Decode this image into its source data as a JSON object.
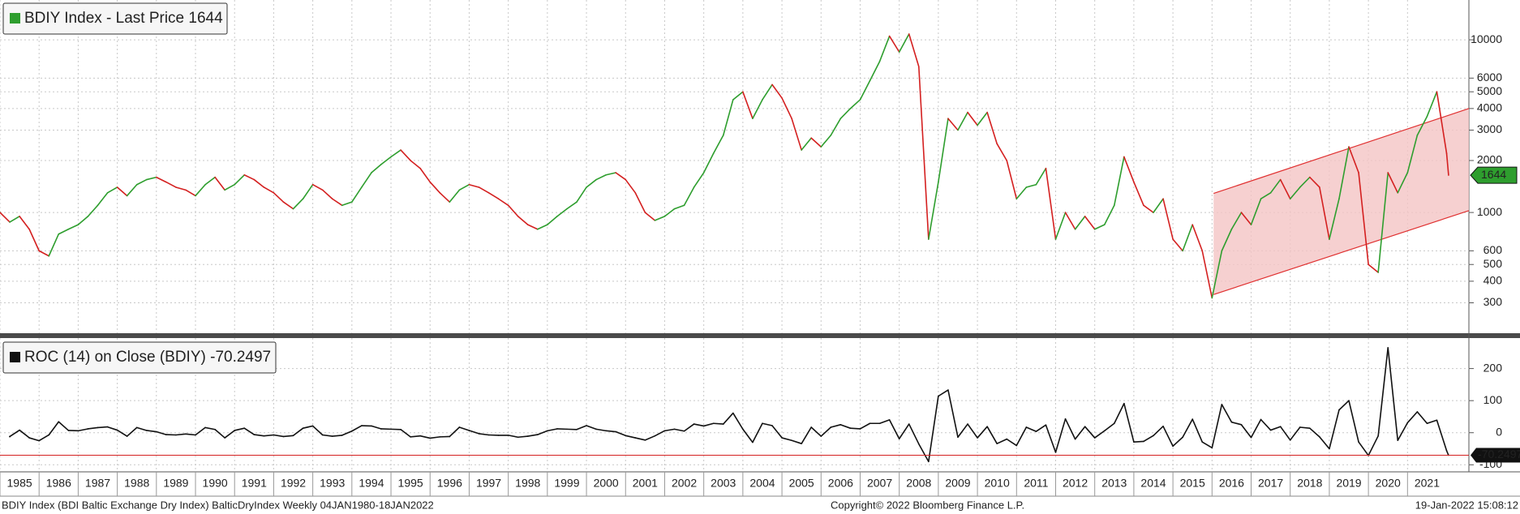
{
  "chart_data": [
    {
      "type": "line",
      "log": true,
      "grid": true,
      "up_color": "#2e9e2e",
      "down_color": "#d42020",
      "xlim": [
        1985,
        2022.57
      ],
      "ylim": [
        200,
        17000
      ],
      "yticks": [
        300,
        400,
        500,
        600,
        1000,
        2000,
        3000,
        4000,
        5000,
        6000,
        10000
      ],
      "x": [
        1985,
        1985.25,
        1985.5,
        1985.75,
        1986,
        1986.25,
        1986.5,
        1986.75,
        1987,
        1987.25,
        1987.5,
        1987.75,
        1988,
        1988.25,
        1988.5,
        1988.75,
        1989,
        1989.25,
        1989.5,
        1989.75,
        1990,
        1990.25,
        1990.5,
        1990.75,
        1991,
        1991.25,
        1991.5,
        1991.75,
        1992,
        1992.25,
        1992.5,
        1992.75,
        1993,
        1993.25,
        1993.5,
        1993.75,
        1994,
        1994.25,
        1994.5,
        1994.75,
        1995,
        1995.25,
        1995.5,
        1995.75,
        1996,
        1996.25,
        1996.5,
        1996.75,
        1997,
        1997.25,
        1997.5,
        1997.75,
        1998,
        1998.25,
        1998.5,
        1998.75,
        1999,
        1999.25,
        1999.5,
        1999.75,
        2000,
        2000.25,
        2000.5,
        2000.75,
        2001,
        2001.25,
        2001.5,
        2001.75,
        2002,
        2002.25,
        2002.5,
        2002.75,
        2003,
        2003.25,
        2003.5,
        2003.75,
        2004,
        2004.25,
        2004.5,
        2004.75,
        2005,
        2005.25,
        2005.5,
        2005.75,
        2006,
        2006.25,
        2006.5,
        2006.75,
        2007,
        2007.25,
        2007.5,
        2007.75,
        2008,
        2008.25,
        2008.5,
        2008.75,
        2009,
        2009.25,
        2009.5,
        2009.75,
        2010,
        2010.25,
        2010.5,
        2010.75,
        2011,
        2011.25,
        2011.5,
        2011.75,
        2012,
        2012.25,
        2012.5,
        2012.75,
        2013,
        2013.25,
        2013.5,
        2013.75,
        2014,
        2014.25,
        2014.5,
        2014.75,
        2015,
        2015.25,
        2015.5,
        2015.75,
        2016,
        2016.25,
        2016.5,
        2016.75,
        2017,
        2017.25,
        2017.5,
        2017.75,
        2018,
        2018.25,
        2018.5,
        2018.75,
        2019,
        2019.25,
        2019.5,
        2019.75,
        2020,
        2020.25,
        2020.5,
        2020.75,
        2021,
        2021.25,
        2021.5,
        2021.75,
        2022,
        2022.05
      ],
      "series": [
        {
          "name": "BDIY Index - Last Price 1644",
          "color": "#2e9e2e",
          "values": [
            1000,
            880,
            950,
            800,
            600,
            560,
            750,
            800,
            850,
            950,
            1100,
            1300,
            1400,
            1250,
            1450,
            1550,
            1600,
            1500,
            1400,
            1350,
            1250,
            1450,
            1600,
            1350,
            1450,
            1650,
            1550,
            1400,
            1300,
            1150,
            1050,
            1200,
            1450,
            1350,
            1200,
            1100,
            1150,
            1400,
            1700,
            1900,
            2100,
            2300,
            2000,
            1800,
            1500,
            1300,
            1150,
            1350,
            1450,
            1400,
            1300,
            1200,
            1100,
            950,
            850,
            800,
            850,
            950,
            1050,
            1150,
            1400,
            1550,
            1650,
            1700,
            1550,
            1300,
            1000,
            900,
            950,
            1050,
            1100,
            1400,
            1700,
            2200,
            2800,
            4500,
            5000,
            3500,
            4500,
            5500,
            4600,
            3500,
            2300,
            2700,
            2400,
            2800,
            3500,
            4000,
            4500,
            5800,
            7500,
            10500,
            8500,
            10800,
            7000,
            700,
            1500,
            3500,
            3000,
            3800,
            3200,
            3800,
            2500,
            2000,
            1200,
            1400,
            1450,
            1800,
            700,
            1000,
            800,
            950,
            800,
            850,
            1100,
            2100,
            1500,
            1100,
            1000,
            1200,
            700,
            600,
            850,
            600,
            320,
            600,
            800,
            1000,
            850,
            1200,
            1300,
            1550,
            1200,
            1400,
            1600,
            1400,
            700,
            1200,
            2400,
            1700,
            500,
            450,
            1700,
            1300,
            1700,
            2800,
            3600,
            5000,
            2200,
            1644
          ]
        }
      ],
      "channel": {
        "x": [
          2016.04,
          2022.57
        ],
        "upper": [
          1290,
          4000
        ],
        "lower": [
          335,
          1025
        ],
        "color": "#f4c4c4",
        "edge": "#e03030"
      }
    },
    {
      "type": "line",
      "grid": true,
      "xlim": [
        1985,
        2022.57
      ],
      "ylim": [
        -122,
        295
      ],
      "yticks": [
        -100,
        0,
        100,
        200
      ],
      "xticks": [
        1985,
        1986,
        1987,
        1988,
        1989,
        1990,
        1991,
        1992,
        1993,
        1994,
        1995,
        1996,
        1997,
        1998,
        1999,
        2000,
        2001,
        2002,
        2003,
        2004,
        2005,
        2006,
        2007,
        2008,
        2009,
        2010,
        2011,
        2012,
        2013,
        2014,
        2015,
        2016,
        2017,
        2018,
        2019,
        2020,
        2021
      ],
      "series": [
        {
          "name": "ROC (14)  on Close (BDIY) -70.2497",
          "color": "#111111",
          "last_line_color": "#d42020",
          "values": [
            null,
            -12,
            8,
            -16,
            -25,
            -7,
            34,
            7,
            6,
            12,
            16,
            18,
            8,
            -11,
            16,
            7,
            3,
            -6,
            -7,
            -4,
            -7,
            16,
            10,
            -16,
            7,
            14,
            -6,
            -10,
            -7,
            -12,
            -9,
            14,
            21,
            -7,
            -11,
            -8,
            5,
            22,
            21,
            12,
            11,
            10,
            -13,
            -10,
            -17,
            -13,
            -12,
            17,
            7,
            -3,
            -7,
            -8,
            -8,
            -14,
            -11,
            -6,
            6,
            12,
            11,
            10,
            22,
            11,
            6,
            3,
            -9,
            -16,
            -23,
            -10,
            6,
            11,
            5,
            27,
            21,
            29,
            27,
            61,
            11,
            -30,
            29,
            22,
            -16,
            -24,
            -34,
            17,
            -11,
            17,
            25,
            14,
            12,
            29,
            29,
            40,
            -19,
            27,
            -35,
            -90,
            114,
            133,
            -14,
            27,
            -16,
            19,
            -34,
            -20,
            -40,
            17,
            4,
            24,
            -61,
            43,
            -20,
            19,
            -16,
            6,
            29,
            91,
            -29,
            -27,
            -9,
            20,
            -42,
            -14,
            42,
            -29,
            -47,
            88,
            33,
            25,
            -15,
            41,
            8,
            19,
            -23,
            17,
            14,
            -13,
            -50,
            71,
            100,
            -29,
            -71,
            -10,
            265,
            -24,
            31,
            65,
            29,
            39,
            -56,
            -70.2497
          ]
        }
      ]
    }
  ],
  "footer": {
    "left": "BDIY Index (BDI Baltic Exchange Dry Index) BalticDryIndex  Weekly 04JAN1980-18JAN2022",
    "center": "Copyright© 2022 Bloomberg Finance L.P.",
    "right": "19-Jan-2022 15:08:12"
  }
}
